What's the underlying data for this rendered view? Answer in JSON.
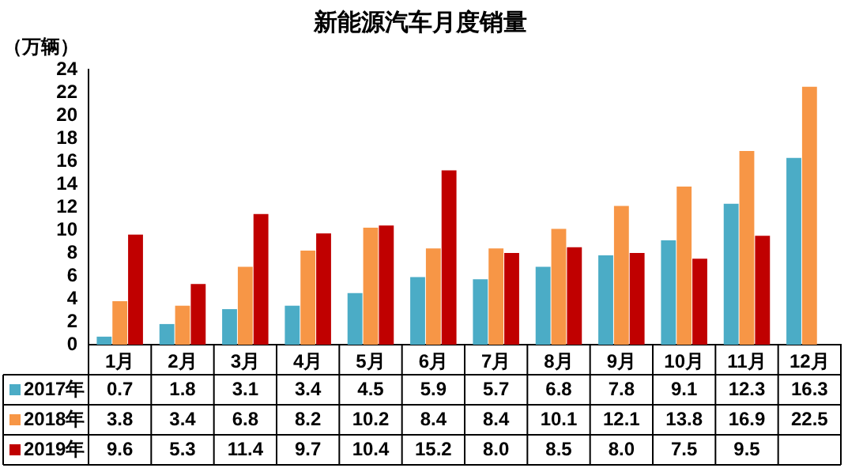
{
  "chart_data": {
    "type": "bar",
    "title": "新能源汽车月度销量",
    "ylabel": "（万辆）",
    "categories": [
      "1月",
      "2月",
      "3月",
      "4月",
      "5月",
      "6月",
      "7月",
      "8月",
      "9月",
      "10月",
      "11月",
      "12月"
    ],
    "series": [
      {
        "name": "2017年",
        "color": "#4bacc6",
        "values": [
          0.7,
          1.8,
          3.1,
          3.4,
          4.5,
          5.9,
          5.7,
          6.8,
          7.8,
          9.1,
          12.3,
          16.3
        ]
      },
      {
        "name": "2018年",
        "color": "#f79646",
        "values": [
          3.8,
          3.4,
          6.8,
          8.2,
          10.2,
          8.4,
          8.4,
          10.1,
          12.1,
          13.8,
          16.9,
          22.5
        ]
      },
      {
        "name": "2019年",
        "color": "#c00000",
        "values": [
          9.6,
          5.3,
          11.4,
          9.7,
          10.4,
          15.2,
          8.0,
          8.5,
          8.0,
          7.5,
          9.5,
          null
        ],
        "value_labels": [
          "9.6",
          "5.3",
          "11.4",
          "9.7",
          "10.4",
          "15.2",
          "8.0",
          "8.5",
          "8.0",
          "7.5",
          "9.5",
          null
        ]
      }
    ],
    "ylim": [
      0,
      24
    ],
    "yticks": [
      0,
      2,
      4,
      6,
      8,
      10,
      12,
      14,
      16,
      18,
      20,
      22,
      24
    ],
    "grid": false,
    "legend": "bottom",
    "data_labels": true
  }
}
